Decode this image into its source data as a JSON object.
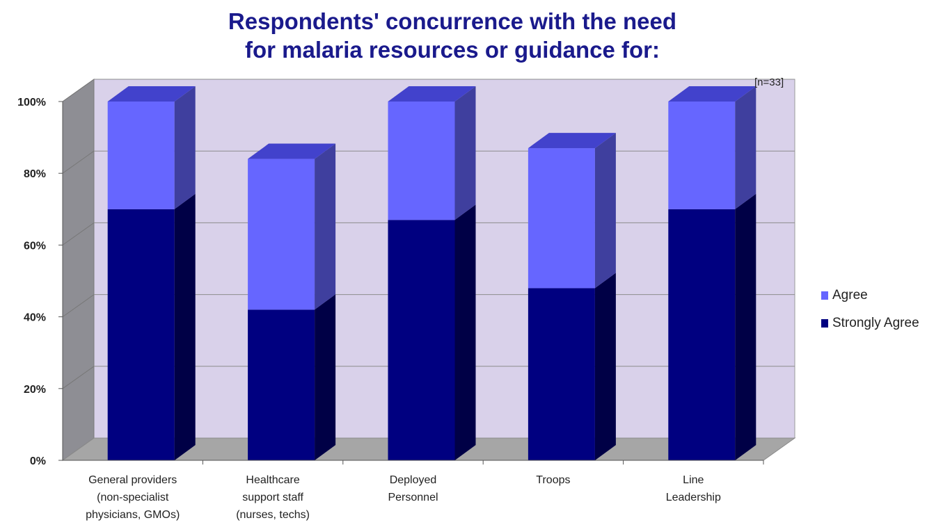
{
  "chart_data": {
    "type": "bar",
    "stacked": true,
    "title_line1": "Respondents' concurrence with the need",
    "title_line2": "for malaria resources or guidance for:",
    "annotation": "[n=33]",
    "categories": [
      [
        "General providers",
        "(non-specialist",
        "physicians, GMOs)"
      ],
      [
        "Healthcare",
        "support staff",
        "(nurses, techs)"
      ],
      [
        "Deployed",
        "Personnel"
      ],
      [
        "Troops"
      ],
      [
        "Line",
        "Leadership"
      ]
    ],
    "series": [
      {
        "name": "Strongly Agree",
        "color": "#000080",
        "values": [
          70,
          42,
          67,
          48,
          70
        ]
      },
      {
        "name": "Agree",
        "color": "#6666ff",
        "values": [
          30,
          42,
          33,
          39,
          30
        ]
      }
    ],
    "legend_order": [
      "Agree",
      "Strongly Agree"
    ],
    "ylim": [
      0,
      100
    ],
    "yticks": [
      "0%",
      "20%",
      "40%",
      "60%",
      "80%",
      "100%"
    ],
    "ytick_values": [
      0,
      20,
      40,
      60,
      80,
      100
    ],
    "grid": true,
    "legend_position": "right"
  }
}
